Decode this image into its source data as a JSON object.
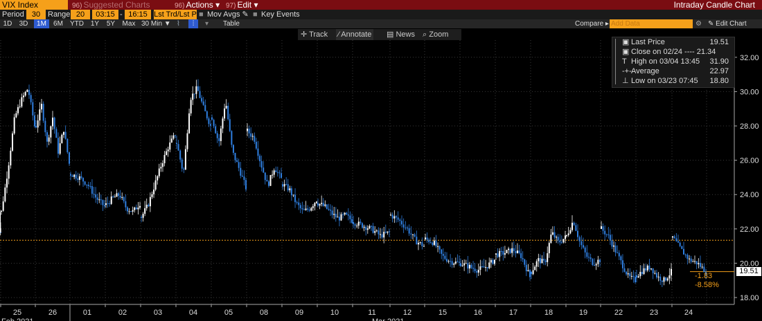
{
  "header": {
    "ticker": "VIX Index",
    "menu": [
      {
        "num": "96)",
        "label": "Suggested Charts",
        "dim": true
      },
      {
        "num": "96)",
        "label": "Actions ▾",
        "dim": false
      },
      {
        "num": "97)",
        "label": "Edit ▾",
        "dim": false
      }
    ],
    "title": "Intraday Candle Chart"
  },
  "settings": {
    "period_label": "Period",
    "period_value": "30",
    "range_label": "Range",
    "range_value": "20",
    "time_from": "03:15",
    "time_to": "16:15",
    "last_trade": "Lst Trd/Lst P",
    "mov_avgs": "Mov Avgs",
    "key_events": "Key Events"
  },
  "toolbar": {
    "ranges": [
      "1D",
      "3D",
      "1M",
      "6M",
      "YTD",
      "1Y",
      "5Y",
      "Max"
    ],
    "selected_range": "1M",
    "interval": "30 Min ▼",
    "table_label": "Table",
    "compare_label": "Compare ▸",
    "add_data_placeholder": "Add Data",
    "edit_chart_label": "✎ Edit Chart",
    "gear": "⚙"
  },
  "tools": {
    "track": "Track",
    "annotate": "Annotate",
    "news": "News",
    "zoom": "Zoom"
  },
  "legend": [
    {
      "icon": "▣",
      "label": "Last Price",
      "value": "19.51"
    },
    {
      "icon": "▣",
      "label": "Close on 02/24 ---- 21.34",
      "value": ""
    },
    {
      "icon": "T",
      "label": "High on 03/04 13:45",
      "value": "31.90"
    },
    {
      "icon": "-+-",
      "label": "Average",
      "value": "22.97"
    },
    {
      "icon": "⊥",
      "label": "Low on 03/23 07:45",
      "value": "18.80"
    }
  ],
  "last_price_box": "19.51",
  "change_abs": "-1.83",
  "change_pct": "-8.58%",
  "colors": {
    "up": "#ffffff",
    "down": "#2f7fe0",
    "ref_line": "#f5a01a",
    "ticker_bg": "#f5a01a",
    "header_bg": "#7a0d12"
  },
  "chart_data": {
    "type": "candlestick",
    "title": "Intraday Candle Chart",
    "series_name": "VIX Index",
    "interval": "30 Min",
    "ylim": [
      17.6,
      33
    ],
    "y_ticks": [
      18,
      20,
      22,
      24,
      26,
      28,
      30,
      32
    ],
    "y_tick_labels": [
      "18.00",
      "20.00",
      "22.00",
      "24.00",
      "26.00",
      "28.00",
      "30.00",
      "32.00"
    ],
    "reference_line": {
      "label": "Close on 02/24",
      "value": 21.34
    },
    "last_price": 19.51,
    "x_day_labels": [
      "25",
      "26",
      "01",
      "02",
      "03",
      "04",
      "05",
      "08",
      "09",
      "10",
      "11",
      "12",
      "15",
      "16",
      "17",
      "18",
      "19",
      "22",
      "23",
      "24"
    ],
    "x_month_labels": [
      "Feb 2021",
      "Mar 2021"
    ],
    "day_close_path": [
      {
        "day": "24",
        "points": [
          21.8,
          22.3,
          23.0
        ]
      },
      {
        "day": "25",
        "points": [
          23.0,
          25.5,
          28.5,
          29.5,
          30.2,
          28.0
        ]
      },
      {
        "day": "26",
        "points": [
          28.0,
          29.2,
          27.0,
          28.5,
          26.5,
          27.8,
          25.8
        ]
      },
      {
        "day": "01",
        "points": [
          25.2,
          25.0,
          24.6,
          23.8,
          23.3
        ]
      },
      {
        "day": "02",
        "points": [
          23.4,
          23.8,
          24.0,
          23.2,
          23.0,
          23.5
        ]
      },
      {
        "day": "03",
        "points": [
          22.7,
          23.4,
          24.6,
          25.8,
          26.8,
          27.5
        ]
      },
      {
        "day": "04",
        "points": [
          27.0,
          25.2,
          29.6,
          30.2,
          29.0,
          28.0
        ]
      },
      {
        "day": "05",
        "points": [
          28.5,
          27.0,
          29.5,
          26.5,
          25.5,
          24.4
        ]
      },
      {
        "day": "08",
        "points": [
          27.7,
          27.3,
          25.8,
          24.5,
          25.6,
          24.9
        ]
      },
      {
        "day": "09",
        "points": [
          24.6,
          24.3,
          23.5,
          23.0,
          23.2,
          23.7
        ]
      },
      {
        "day": "10",
        "points": [
          23.5,
          23.3,
          22.9,
          22.6,
          22.8,
          22.5
        ]
      },
      {
        "day": "11",
        "points": [
          22.4,
          22.2,
          22.0,
          21.6,
          21.8
        ]
      },
      {
        "day": "12",
        "points": [
          22.8,
          22.5,
          22.0,
          21.3,
          21.0
        ]
      },
      {
        "day": "15",
        "points": [
          21.4,
          21.2,
          20.4,
          20.1,
          20.0
        ]
      },
      {
        "day": "16",
        "points": [
          20.0,
          19.8,
          19.6,
          19.8,
          20.2
        ]
      },
      {
        "day": "17",
        "points": [
          20.5,
          20.6,
          20.8,
          20.4,
          19.2
        ]
      },
      {
        "day": "18",
        "points": [
          19.5,
          20.2,
          20.0,
          21.8,
          21.2,
          21.5
        ]
      },
      {
        "day": "19",
        "points": [
          21.6,
          22.5,
          21.2,
          20.4,
          20.0,
          20.2
        ]
      },
      {
        "day": "22",
        "points": [
          22.0,
          21.6,
          20.8,
          20.0,
          19.2,
          19.0
        ]
      },
      {
        "day": "23",
        "points": [
          19.3,
          19.6,
          19.8,
          19.2,
          19.0,
          19.5
        ]
      },
      {
        "day": "24",
        "points": [
          21.5,
          20.8,
          20.2,
          20.0,
          19.51
        ]
      }
    ]
  }
}
